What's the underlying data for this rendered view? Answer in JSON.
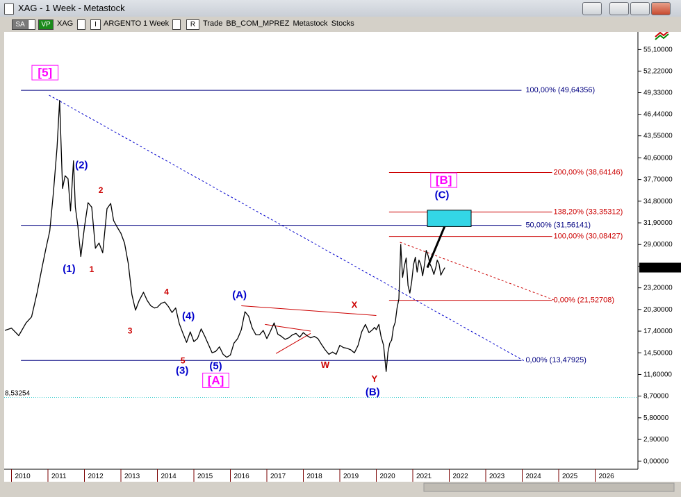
{
  "window": {
    "title": "XAG - 1 Week - Metastock"
  },
  "toolbar": {
    "sa_label": "SA",
    "vp_label": "VP",
    "symbol": "XAG",
    "name": "ARGENTO",
    "period": "1 Week",
    "r_label": "R",
    "i_label": "I",
    "labels": "Trade  BB_COM_MPREZ  Metastock  Stocks"
  },
  "colors": {
    "price": "#000000",
    "blue_wave": "#0000cc",
    "red_wave": "#cc0000",
    "magenta": "#ff00ff",
    "fib_blue": "#000080",
    "fib_red": "#cc0000",
    "target_box": "#33d6e6",
    "support": "#33cccc"
  },
  "chart_data": {
    "type": "line",
    "title": "",
    "ylim": [
      0,
      56
    ],
    "xlim": [
      2009.8,
      2027.0
    ],
    "y_ticks": [
      "55,10000",
      "52,22000",
      "49,33000",
      "46,44000",
      "43,55000",
      "40,60000",
      "37,70000",
      "34,80000",
      "31,90000",
      "29,00000",
      "26,10000",
      "23,20000",
      "20,30000",
      "17,40000",
      "14,50000",
      "11,60000",
      "8,70000",
      "5,80000",
      "2,90000",
      "0,00000"
    ],
    "y_tick_values": [
      55.1,
      52.22,
      49.33,
      46.44,
      43.55,
      40.6,
      37.7,
      34.8,
      31.9,
      29.0,
      26.1,
      23.2,
      20.3,
      17.4,
      14.5,
      11.6,
      8.7,
      5.8,
      2.9,
      0.0
    ],
    "x_ticks": [
      "2010",
      "2011",
      "2012",
      "2013",
      "2014",
      "2015",
      "2016",
      "2017",
      "2018",
      "2019",
      "2020",
      "2021",
      "2022",
      "2023",
      "2024",
      "2025",
      "2026"
    ],
    "x_tick_values": [
      2010,
      2011,
      2012,
      2013,
      2014,
      2015,
      2016,
      2017,
      2018,
      2019,
      2020,
      2021,
      2022,
      2023,
      2024,
      2025,
      2026
    ],
    "last_price_label": "25,90660",
    "last_price": 25.9066,
    "support_label": "8,53254",
    "support_value": 8.53254,
    "series": [
      {
        "x": [
          2009.82,
          2010.0,
          2010.2,
          2010.4,
          2010.55,
          2010.7,
          2010.85,
          2010.95,
          2011.05,
          2011.15,
          2011.25,
          2011.32,
          2011.4,
          2011.47,
          2011.55,
          2011.62,
          2011.7,
          2011.75,
          2011.82,
          2011.9,
          2012.0,
          2012.1,
          2012.2,
          2012.3,
          2012.4,
          2012.5,
          2012.62,
          2012.72,
          2012.8,
          2012.9,
          2013.0,
          2013.1,
          2013.2,
          2013.3,
          2013.4,
          2013.5,
          2013.62,
          2013.72,
          2013.82,
          2013.92,
          2014.0,
          2014.1,
          2014.2,
          2014.3,
          2014.4,
          2014.5,
          2014.6,
          2014.7,
          2014.8,
          2014.9,
          2015.0,
          2015.1,
          2015.2,
          2015.3,
          2015.4,
          2015.5,
          2015.6,
          2015.7,
          2015.8,
          2015.9,
          2016.0,
          2016.1,
          2016.2,
          2016.3,
          2016.4,
          2016.5,
          2016.6,
          2016.7,
          2016.8,
          2016.9,
          2017.0,
          2017.1,
          2017.2,
          2017.3,
          2017.4,
          2017.5,
          2017.6,
          2017.7,
          2017.8,
          2017.9,
          2018.0,
          2018.1,
          2018.2,
          2018.3,
          2018.4,
          2018.5,
          2018.6,
          2018.7,
          2018.8,
          2018.9,
          2019.0,
          2019.1,
          2019.2,
          2019.3,
          2019.4,
          2019.5,
          2019.6,
          2019.7,
          2019.8,
          2019.9,
          2019.95,
          2020.0,
          2020.07,
          2020.13,
          2020.2,
          2020.27,
          2020.32,
          2020.37,
          2020.42,
          2020.47,
          2020.52,
          2020.57,
          2020.62,
          2020.67,
          2020.72,
          2020.77,
          2020.82,
          2020.87,
          2020.92,
          2020.97,
          2021.02,
          2021.07,
          2021.12,
          2021.17,
          2021.22,
          2021.27,
          2021.32,
          2021.37,
          2021.42,
          2021.47,
          2021.52,
          2021.58,
          2021.63,
          2021.67,
          2021.72,
          2021.77,
          2021.82,
          2021.88
        ],
        "y": [
          17.5,
          17.8,
          16.8,
          18.5,
          19.3,
          22.5,
          26.2,
          28.6,
          30.8,
          36.0,
          42.0,
          48.3,
          36.5,
          38.2,
          37.8,
          33.5,
          40.2,
          34.0,
          31.5,
          27.4,
          31.3,
          34.6,
          34.0,
          28.5,
          29.2,
          27.9,
          33.8,
          34.5,
          32.2,
          31.3,
          30.5,
          29.2,
          26.5,
          22.3,
          20.2,
          21.5,
          22.6,
          21.5,
          20.8,
          20.5,
          20.6,
          21.1,
          21.3,
          20.7,
          19.9,
          20.5,
          18.4,
          17.1,
          15.9,
          17.3,
          16.0,
          16.4,
          17.7,
          16.7,
          15.6,
          14.5,
          14.7,
          15.3,
          14.3,
          13.9,
          14.2,
          15.8,
          16.4,
          17.6,
          20.0,
          19.4,
          17.8,
          16.9,
          16.9,
          17.5,
          16.4,
          17.4,
          18.5,
          17.0,
          16.7,
          16.3,
          16.5,
          16.9,
          17.1,
          16.6,
          17.2,
          16.8,
          16.5,
          16.7,
          16.4,
          15.6,
          14.9,
          14.3,
          14.6,
          14.3,
          15.5,
          15.2,
          15.1,
          14.9,
          14.5,
          15.5,
          17.3,
          18.3,
          17.2,
          17.6,
          17.9,
          17.6,
          18.3,
          16.7,
          15.5,
          12.0,
          14.6,
          15.8,
          16.2,
          17.9,
          18.6,
          20.5,
          21.7,
          29.0,
          24.6,
          26.1,
          27.2,
          23.5,
          22.5,
          24.0,
          26.3,
          27.3,
          25.3,
          26.9,
          26.3,
          24.8,
          26.3,
          28.2,
          27.5,
          26.4,
          25.9,
          25.0,
          25.9,
          26.9,
          26.4,
          24.9,
          25.4,
          25.9
        ]
      }
    ],
    "fib_levels_blue": [
      {
        "label": "100,00% (49,64356)",
        "value": 49.64356,
        "x0": 2010.26,
        "x1": 2023.98
      },
      {
        "label": "50,00% (31,56141)",
        "value": 31.56141,
        "x0": 2010.26,
        "x1": 2023.98
      },
      {
        "label": "0,00% (13,47925)",
        "value": 13.47925,
        "x0": 2010.26,
        "x1": 2023.98
      }
    ],
    "fib_levels_red": [
      {
        "label": "200,00% (38,64146)",
        "value": 38.64146,
        "x0": 2020.35,
        "x1": 2024.82
      },
      {
        "label": "138,20% (33,35312)",
        "value": 33.35312,
        "x0": 2020.35,
        "x1": 2024.82
      },
      {
        "label": "100,00% (30,08427)",
        "value": 30.08427,
        "x0": 2020.35,
        "x1": 2024.82
      },
      {
        "label": "0,00% (21,52708)",
        "value": 21.52708,
        "x0": 2020.35,
        "x1": 2024.82
      }
    ],
    "trendlines": [
      {
        "x0": 2011.03,
        "y0": 49.0,
        "x1": 2024.06,
        "y1": 13.4,
        "color": "blue",
        "dash": true
      },
      {
        "x0": 2020.65,
        "y0": 29.3,
        "x1": 2024.86,
        "y1": 21.6,
        "color": "red",
        "dash": true
      },
      {
        "x0": 2016.3,
        "y0": 20.8,
        "x1": 2020.0,
        "y1": 19.5,
        "color": "red",
        "dash": false
      },
      {
        "x0": 2016.95,
        "y0": 18.3,
        "x1": 2018.2,
        "y1": 17.4,
        "color": "red",
        "dash": false
      },
      {
        "x0": 2017.25,
        "y0": 14.4,
        "x1": 2018.2,
        "y1": 17.1,
        "color": "red",
        "dash": false
      },
      {
        "x0": 2021.4,
        "y0": 25.9,
        "x1": 2022.0,
        "y1": 32.9,
        "color": "black",
        "dash": false,
        "thick": true
      }
    ],
    "target_box": {
      "x0": 2021.4,
      "x1": 2022.6,
      "y0": 31.4,
      "y1": 33.6
    },
    "annotations": [
      {
        "text": "[5]",
        "x": 2010.92,
        "y": 51.5,
        "color": "magenta",
        "size": 17,
        "box": true
      },
      {
        "text": "(2)",
        "x": 2011.92,
        "y": 39.2,
        "color": "blue",
        "size": 15
      },
      {
        "text": "2",
        "x": 2012.45,
        "y": 35.9,
        "color": "red",
        "size": 12
      },
      {
        "text": "(1)",
        "x": 2011.58,
        "y": 25.3,
        "color": "blue",
        "size": 15
      },
      {
        "text": "1",
        "x": 2012.2,
        "y": 25.3,
        "color": "red",
        "size": 12
      },
      {
        "text": "3",
        "x": 2013.25,
        "y": 17.1,
        "color": "red",
        "size": 12
      },
      {
        "text": "4",
        "x": 2014.25,
        "y": 22.3,
        "color": "red",
        "size": 12
      },
      {
        "text": "(4)",
        "x": 2014.85,
        "y": 19.0,
        "color": "blue",
        "size": 15
      },
      {
        "text": "5",
        "x": 2014.7,
        "y": 13.1,
        "color": "red",
        "size": 12
      },
      {
        "text": "(3)",
        "x": 2014.68,
        "y": 11.7,
        "color": "blue",
        "size": 15
      },
      {
        "text": "(5)",
        "x": 2015.6,
        "y": 12.3,
        "color": "blue",
        "size": 15
      },
      {
        "text": "[A]",
        "x": 2015.6,
        "y": 10.3,
        "color": "magenta",
        "size": 17,
        "box": true
      },
      {
        "text": "(A)",
        "x": 2016.25,
        "y": 21.8,
        "color": "blue",
        "size": 15
      },
      {
        "text": "X",
        "x": 2019.4,
        "y": 20.5,
        "color": "red",
        "size": 13
      },
      {
        "text": "W",
        "x": 2018.6,
        "y": 12.5,
        "color": "red",
        "size": 13
      },
      {
        "text": "Y",
        "x": 2019.95,
        "y": 10.6,
        "color": "red",
        "size": 13
      },
      {
        "text": "(B)",
        "x": 2019.9,
        "y": 8.8,
        "color": "blue",
        "size": 15
      },
      {
        "text": "[B]",
        "x": 2021.85,
        "y": 37.1,
        "color": "magenta",
        "size": 17,
        "box": true
      },
      {
        "text": "(C)",
        "x": 2021.8,
        "y": 35.2,
        "color": "blue",
        "size": 15
      }
    ]
  }
}
